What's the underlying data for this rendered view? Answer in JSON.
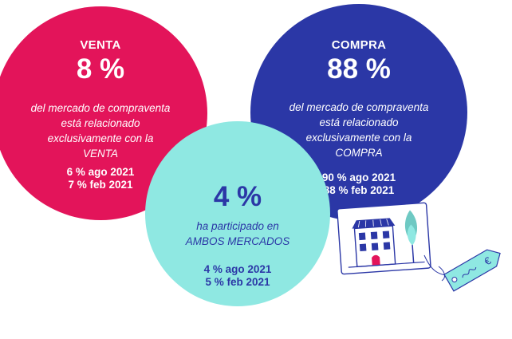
{
  "venta": {
    "label": "VENTA",
    "percent": "8 %",
    "desc_lines": [
      "del mercado de compraventa",
      "está relacionado",
      "exclusivamente con la",
      "VENTA"
    ],
    "stats": [
      "6 % ago 2021",
      "7 % feb 2021"
    ]
  },
  "compra": {
    "label": "COMPRA",
    "percent": "88 %",
    "desc_lines": [
      "del mercado de compraventa",
      "está relacionado",
      "exclusivamente con la",
      "COMPRA"
    ],
    "stats": [
      "90 % ago 2021",
      "88 % feb 2021"
    ]
  },
  "ambos": {
    "percent": "4 %",
    "desc_lines": [
      "ha participado en",
      "AMBOS MERCADOS"
    ],
    "stats": [
      "4 % ago 2021",
      "5 % feb 2021"
    ]
  },
  "tag": {
    "symbol": "€"
  },
  "colors": {
    "venta": "#e3145a",
    "compra": "#2b37a6",
    "ambos": "#8fe8e2",
    "text_light": "#ffffff",
    "text_dark": "#2b37a6"
  }
}
